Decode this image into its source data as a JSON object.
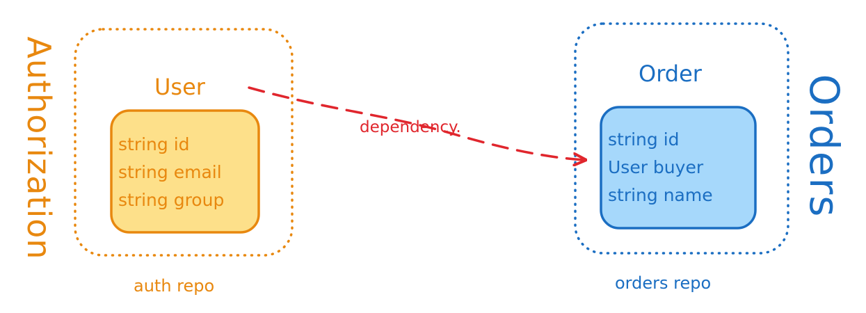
{
  "colors": {
    "orange": "#e8880f",
    "blue": "#1b6ec2",
    "red": "#e0262d",
    "user_fill": "#fde08a",
    "order_fill": "#a6d8fb"
  },
  "authorization": {
    "boundary_label": "Authorization",
    "entity_title": "User",
    "fields": [
      "string id",
      "string email",
      "string group"
    ],
    "repo_label": "auth repo"
  },
  "orders": {
    "boundary_label": "Orders",
    "entity_title": "Order",
    "fields": [
      "string id",
      "User buyer",
      "string name"
    ],
    "repo_label": "orders repo"
  },
  "relation": {
    "label": "dependency."
  }
}
